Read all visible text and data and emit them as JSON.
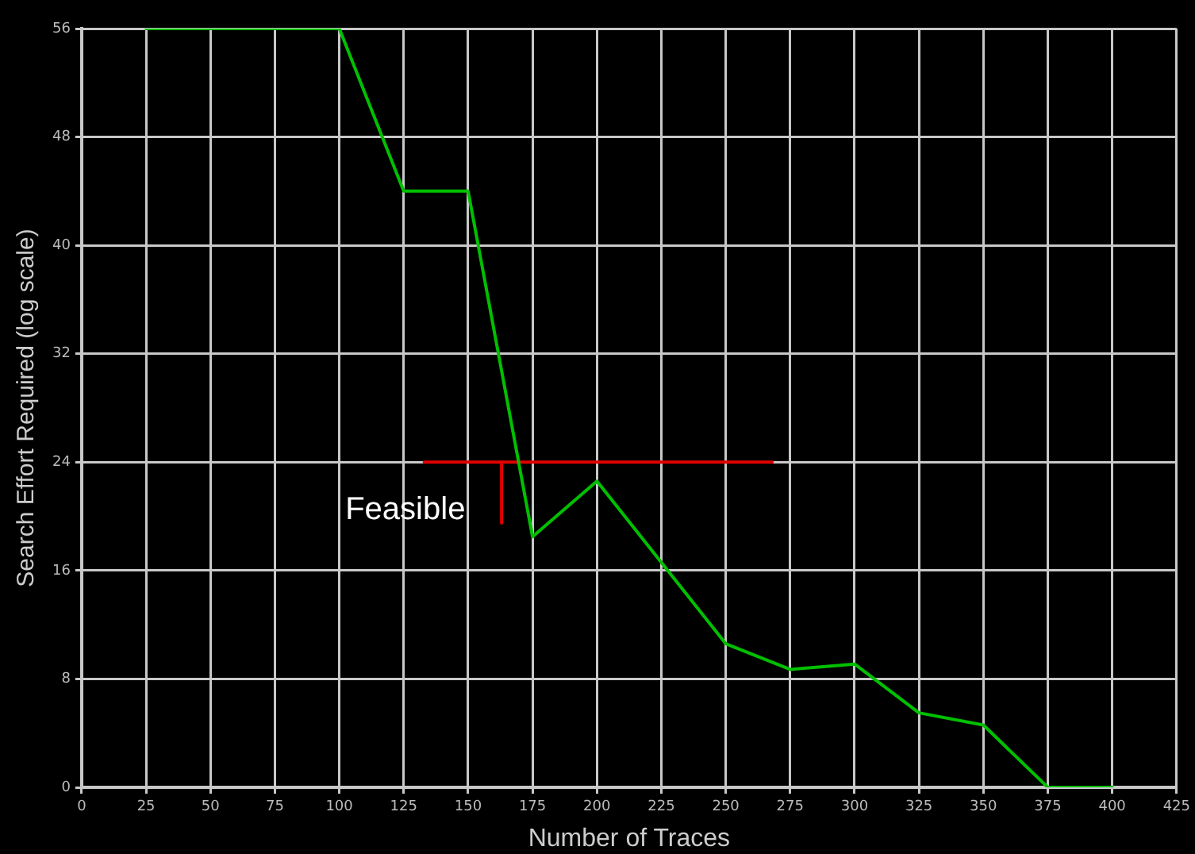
{
  "chart_data": {
    "type": "line",
    "xlabel": "Number of Traces",
    "ylabel": "Search Effort Required (log scale)",
    "x": [
      25,
      100,
      125,
      150,
      175,
      200,
      250,
      275,
      300,
      325,
      350,
      375,
      400
    ],
    "series": [
      {
        "color": "#00c000",
        "values": [
          56,
          56,
          44,
          44,
          18.5,
          22.6,
          10.6,
          8.7,
          9.1,
          5.5,
          4.6,
          0,
          0
        ]
      },
      {
        "type": "line",
        "color": "#e00000",
        "x": [
          133,
          268
        ],
        "values": [
          24,
          24
        ]
      },
      {
        "type": "line",
        "color": "#e00000",
        "x": [
          163,
          163
        ],
        "values": [
          24,
          19.5
        ]
      }
    ],
    "annotations": [
      {
        "text": "Feasible",
        "x": 160,
        "y": 19.5
      }
    ],
    "xlim": [
      0,
      425
    ],
    "xticks": [
      0,
      25,
      50,
      75,
      100,
      125,
      150,
      175,
      200,
      225,
      250,
      275,
      300,
      325,
      350,
      375,
      400,
      425
    ],
    "ylim": [
      0,
      56
    ],
    "yticks": [
      0,
      8,
      16,
      24,
      32,
      40,
      48,
      56
    ],
    "grid": true,
    "legend": false,
    "marker": "none",
    "line_style": "solid"
  }
}
